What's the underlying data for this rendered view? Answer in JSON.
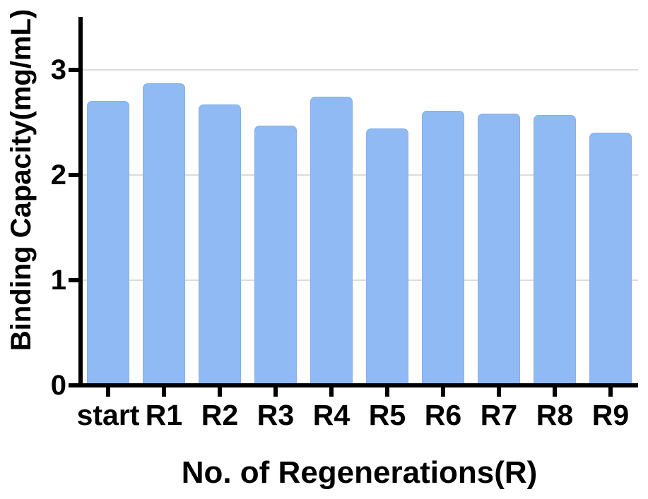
{
  "chart_data": {
    "type": "bar",
    "title": "",
    "categories": [
      "start",
      "R1",
      "R2",
      "R3",
      "R4",
      "R5",
      "R6",
      "R7",
      "R8",
      "R9"
    ],
    "values": [
      2.7,
      2.87,
      2.67,
      2.47,
      2.74,
      2.44,
      2.61,
      2.58,
      2.57,
      2.4
    ],
    "xlabel": "No. of Regenerations(R)",
    "ylabel": "Binding Capacity(mg/mL)",
    "yticks": [
      0,
      1,
      2,
      3
    ],
    "ylim": [
      0,
      3.5
    ],
    "grid": "horizontal-at-yticks",
    "legend": "none",
    "colors": {
      "bar": "#8FBAF3",
      "bar_edge": "#86B0E9",
      "grid": "#DCDCDC",
      "axis": "#000000",
      "text": "#000000",
      "background": "#FFFFFF"
    }
  }
}
